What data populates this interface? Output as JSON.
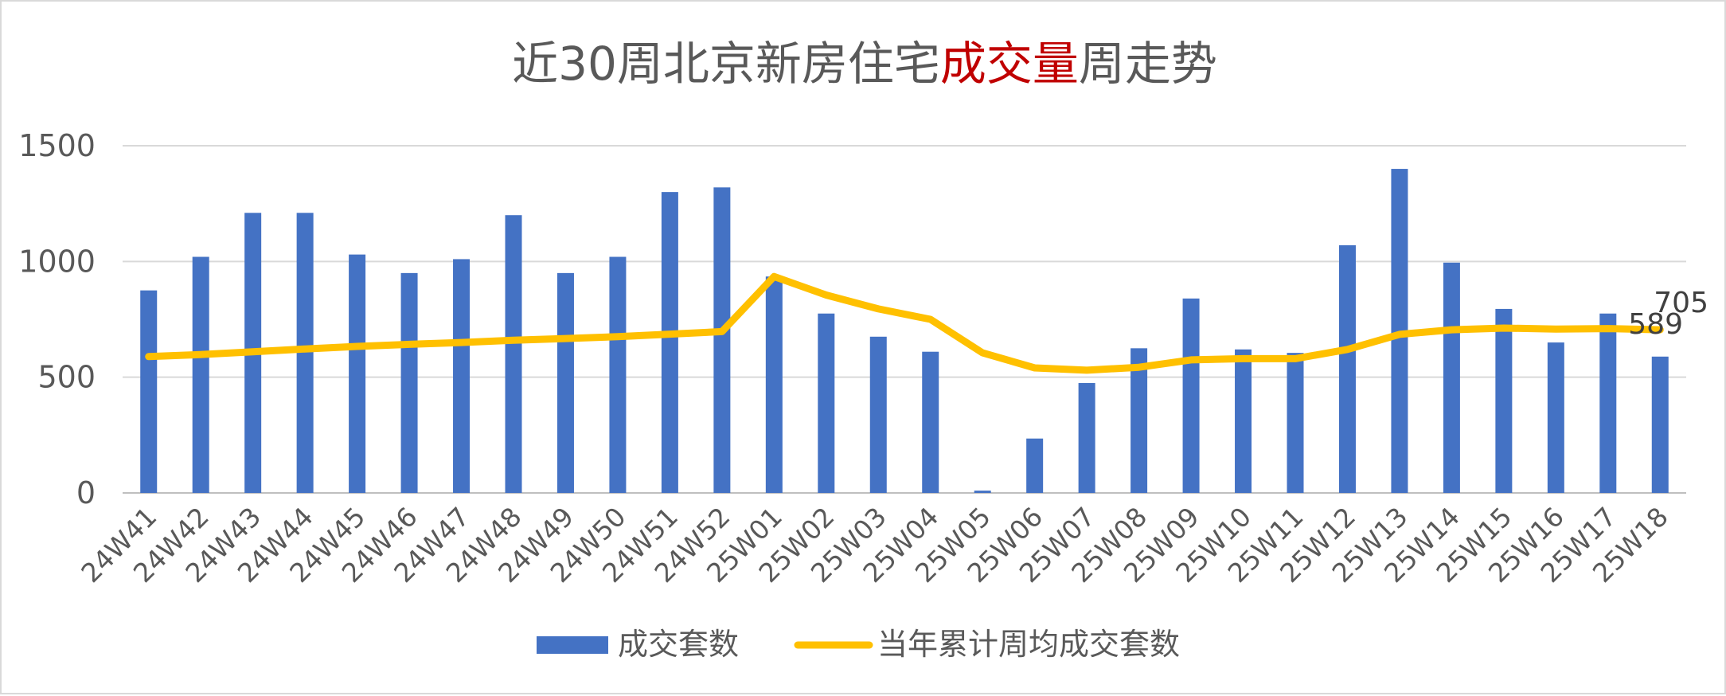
{
  "chart_data": {
    "type": "bar",
    "title": {
      "parts": [
        {
          "text": "近30周北京新房住宅",
          "color": "#595959"
        },
        {
          "text": "成交量",
          "color": "#c00000"
        },
        {
          "text": "周走势",
          "color": "#595959"
        }
      ]
    },
    "categories": [
      "24W41",
      "24W42",
      "24W43",
      "24W44",
      "24W45",
      "24W46",
      "24W47",
      "24W48",
      "24W49",
      "24W50",
      "24W51",
      "24W52",
      "25W01",
      "25W02",
      "25W03",
      "25W04",
      "25W05",
      "25W06",
      "25W07",
      "25W08",
      "25W09",
      "25W10",
      "25W11",
      "25W12",
      "25W13",
      "25W14",
      "25W15",
      "25W16",
      "25W17",
      "25W18"
    ],
    "series": [
      {
        "name": "成交套数",
        "type": "bar",
        "color": "#4472c4",
        "values": [
          875,
          1020,
          1210,
          1210,
          1030,
          950,
          1010,
          1200,
          950,
          1020,
          1300,
          1320,
          935,
          775,
          675,
          610,
          10,
          235,
          475,
          625,
          840,
          620,
          605,
          1070,
          1400,
          995,
          795,
          650,
          775,
          589
        ]
      },
      {
        "name": "当年累计周均成交套数",
        "type": "line",
        "color": "#ffc000",
        "values": [
          589,
          598,
          610,
          622,
          633,
          642,
          650,
          660,
          667,
          675,
          686,
          697,
          935,
          855,
          795,
          750,
          605,
          540,
          530,
          543,
          575,
          580,
          580,
          620,
          685,
          705,
          712,
          708,
          710,
          705
        ]
      }
    ],
    "data_labels": [
      {
        "series": 0,
        "index": 29,
        "text": "589"
      },
      {
        "series": 1,
        "index": 29,
        "text": "705"
      }
    ],
    "y_ticks": [
      "0",
      "500",
      "1000",
      "1500"
    ],
    "ylim": [
      0,
      1500
    ],
    "grid": true,
    "legend_position": "bottom"
  }
}
